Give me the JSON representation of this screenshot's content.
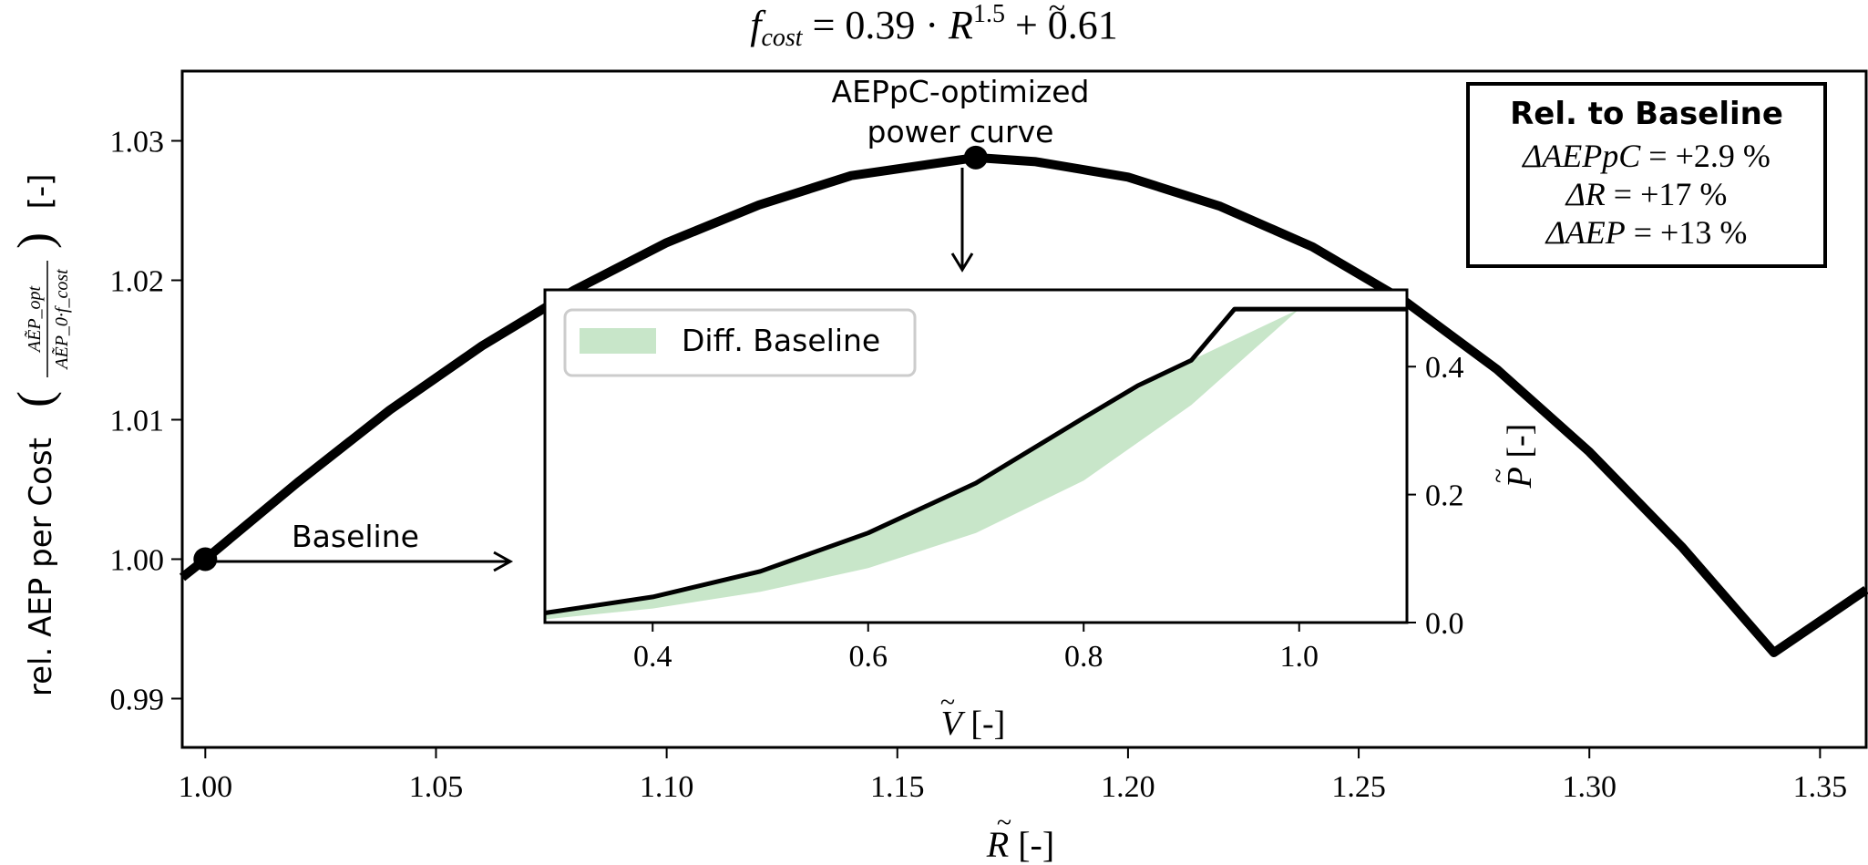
{
  "title": {
    "lhs_base": "f",
    "lhs_sub": "cost",
    "eq_prefix": "= 0.39 · ",
    "var": "R",
    "tilde": "~",
    "exp": "1.5",
    "eq_suffix": "+ 0.61"
  },
  "main_axes": {
    "xlabel_var": "R",
    "xlabel_tilde": "~",
    "xlabel_unit": "[-]",
    "ylabel_text": "rel. AEP per Cost",
    "ylabel_unit": "[-]",
    "ylabel_frac_num": "AẼP_opt",
    "ylabel_frac_den": "AẼP_0·f_cost"
  },
  "annotations": {
    "optimized_line1": "AEPpC-optimized",
    "optimized_line2": "power curve",
    "baseline": "Baseline"
  },
  "info_box": {
    "title": "Rel. to Baseline",
    "lines": [
      {
        "label": "ΔAEPpC",
        "value": "= +2.9 %"
      },
      {
        "label": "ΔR",
        "value": "= +17 %"
      },
      {
        "label": "ΔAEP",
        "value": "= +13 %"
      }
    ]
  },
  "inset_axes": {
    "xlabel_var": "V",
    "xlabel_tilde": "~",
    "xlabel_unit": "[-]",
    "ylabel_var": "P",
    "ylabel_tilde": "~",
    "ylabel_unit": "[-]",
    "legend_label": "Diff. Baseline"
  },
  "colors": {
    "line": "#000000",
    "fill": "#c8e6c9"
  },
  "chart_data": [
    {
      "type": "line",
      "xlim": [
        0.995,
        1.36
      ],
      "ylim": [
        0.9865,
        1.035
      ],
      "xticks": [
        1.0,
        1.05,
        1.1,
        1.15,
        1.2,
        1.25,
        1.3,
        1.35
      ],
      "xtick_labels": [
        "1.00",
        "1.05",
        "1.10",
        "1.15",
        "1.20",
        "1.25",
        "1.30",
        "1.35"
      ],
      "yticks": [
        0.99,
        1.0,
        1.01,
        1.02,
        1.03
      ],
      "ytick_labels": [
        "0.99",
        "1.00",
        "1.01",
        "1.02",
        "1.03"
      ],
      "x": [
        0.995,
        1.0,
        1.02,
        1.04,
        1.06,
        1.08,
        1.1,
        1.12,
        1.14,
        1.167,
        1.18,
        1.2,
        1.22,
        1.24,
        1.26,
        1.28,
        1.3,
        1.32,
        1.34,
        1.36
      ],
      "y": [
        0.9987,
        1.0,
        1.0055,
        1.0107,
        1.0153,
        1.0193,
        1.0227,
        1.0254,
        1.0275,
        1.0288,
        1.0285,
        1.0274,
        1.0253,
        1.0224,
        1.0185,
        1.0136,
        1.0077,
        1.0009,
        0.9933,
        0.9978
      ],
      "markers": [
        {
          "x": 1.0,
          "y": 1.0,
          "label": "Baseline"
        },
        {
          "x": 1.167,
          "y": 1.0288,
          "label": "AEPpC-optimized power curve"
        }
      ]
    },
    {
      "type": "area",
      "xlim": [
        0.3,
        1.1
      ],
      "ylim": [
        0.0,
        0.52
      ],
      "xticks": [
        0.4,
        0.6,
        0.8,
        1.0
      ],
      "xtick_labels": [
        "0.4",
        "0.6",
        "0.8",
        "1.0"
      ],
      "yticks": [
        0.0,
        0.2,
        0.4
      ],
      "ytick_labels": [
        "0.0",
        "0.2",
        "0.4"
      ],
      "legend": "top-left",
      "series": [
        {
          "name": "Diff. Baseline",
          "x": [
            0.3,
            0.4,
            0.5,
            0.6,
            0.7,
            0.8,
            0.9,
            1.0,
            1.1
          ],
          "y_lower": [
            0.005,
            0.022,
            0.048,
            0.085,
            0.14,
            0.222,
            0.34,
            0.49,
            0.49
          ],
          "y_upper": [
            0.015,
            0.04,
            0.08,
            0.14,
            0.218,
            0.32,
            0.41,
            0.49,
            0.49
          ]
        },
        {
          "x": [
            0.3,
            0.4,
            0.5,
            0.6,
            0.7,
            0.8,
            0.85,
            0.9,
            0.94,
            1.0,
            1.1
          ],
          "y": [
            0.015,
            0.04,
            0.08,
            0.14,
            0.218,
            0.32,
            0.37,
            0.41,
            0.49,
            0.49,
            0.49
          ]
        }
      ]
    }
  ]
}
